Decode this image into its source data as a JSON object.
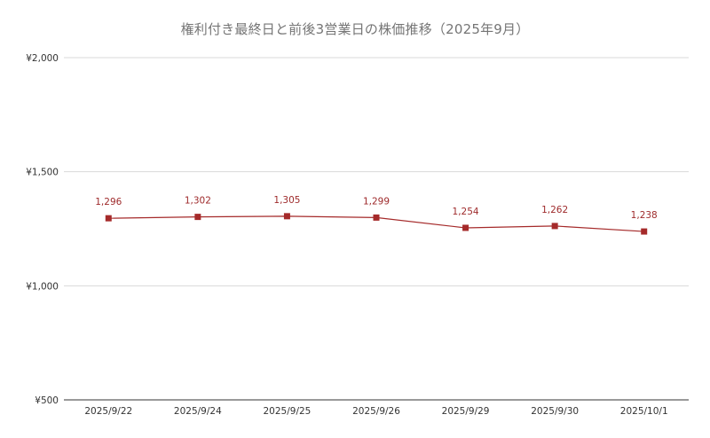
{
  "chart_data": {
    "type": "line",
    "title": "権利付き最終日と前後3営業日の株価推移（2025年9月）",
    "xlabel": "",
    "ylabel": "",
    "categories": [
      "2025/9/22",
      "2025/9/24",
      "2025/9/25",
      "2025/9/26",
      "2025/9/29",
      "2025/9/30",
      "2025/10/1"
    ],
    "series": [
      {
        "values": [
          1296,
          1302,
          1305,
          1299,
          1254,
          1262,
          1238
        ],
        "labels": [
          "1,296",
          "1,302",
          "1,305",
          "1,299",
          "1,254",
          "1,262",
          "1,238"
        ],
        "color": "#a52a2a"
      }
    ],
    "ylim": [
      500,
      2000
    ],
    "yticks": [
      500,
      1000,
      1500,
      2000
    ],
    "ytick_labels": [
      "¥500",
      "¥1,000",
      "¥1,500",
      "¥2,000"
    ],
    "grid": true,
    "marker": "square",
    "data_labels": true,
    "legend": "none"
  }
}
